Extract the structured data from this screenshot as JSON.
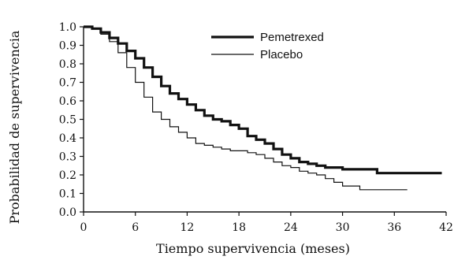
{
  "chart_data": {
    "type": "line",
    "xlabel": "Tiempo supervivencia (meses)",
    "ylabel": "Probabilidad de supervivencia",
    "xlim": [
      0,
      42
    ],
    "ylim": [
      0,
      1
    ],
    "x_ticks": [
      "0",
      "6",
      "12",
      "18",
      "24",
      "30",
      "36",
      "42"
    ],
    "y_ticks": [
      "0.0",
      "0.1",
      "0.2",
      "0.3",
      "0.4",
      "0.5",
      "0.6",
      "0.7",
      "0.8",
      "0.9",
      "1.0"
    ],
    "grid": false,
    "legend_position": "top-right",
    "series": [
      {
        "name": "Pemetrexed",
        "line": "thick",
        "x": [
          0,
          1,
          2,
          3,
          4,
          5,
          6,
          7,
          8,
          9,
          10,
          11,
          12,
          13,
          14,
          15,
          16,
          17,
          18,
          19,
          20,
          21,
          22,
          23,
          24,
          25,
          26,
          27,
          28,
          29,
          30,
          32,
          34,
          36,
          38,
          40,
          41.5
        ],
        "y": [
          1.0,
          0.99,
          0.97,
          0.94,
          0.91,
          0.87,
          0.83,
          0.78,
          0.73,
          0.68,
          0.64,
          0.61,
          0.58,
          0.55,
          0.52,
          0.5,
          0.49,
          0.47,
          0.45,
          0.41,
          0.39,
          0.37,
          0.34,
          0.31,
          0.29,
          0.27,
          0.26,
          0.25,
          0.24,
          0.24,
          0.23,
          0.23,
          0.21,
          0.21,
          0.21,
          0.21,
          0.21
        ]
      },
      {
        "name": "Placebo",
        "line": "thin",
        "x": [
          0,
          1,
          2,
          3,
          4,
          5,
          6,
          7,
          8,
          9,
          10,
          11,
          12,
          13,
          14,
          15,
          16,
          17,
          18,
          19,
          20,
          21,
          22,
          23,
          24,
          25,
          26,
          27,
          28,
          29,
          30,
          32,
          34,
          36,
          37.5
        ],
        "y": [
          1.0,
          0.99,
          0.96,
          0.92,
          0.86,
          0.78,
          0.7,
          0.62,
          0.54,
          0.5,
          0.46,
          0.43,
          0.4,
          0.37,
          0.36,
          0.35,
          0.34,
          0.33,
          0.33,
          0.32,
          0.31,
          0.29,
          0.27,
          0.25,
          0.24,
          0.22,
          0.21,
          0.2,
          0.18,
          0.16,
          0.14,
          0.12,
          0.12,
          0.12,
          0.12
        ]
      }
    ]
  }
}
